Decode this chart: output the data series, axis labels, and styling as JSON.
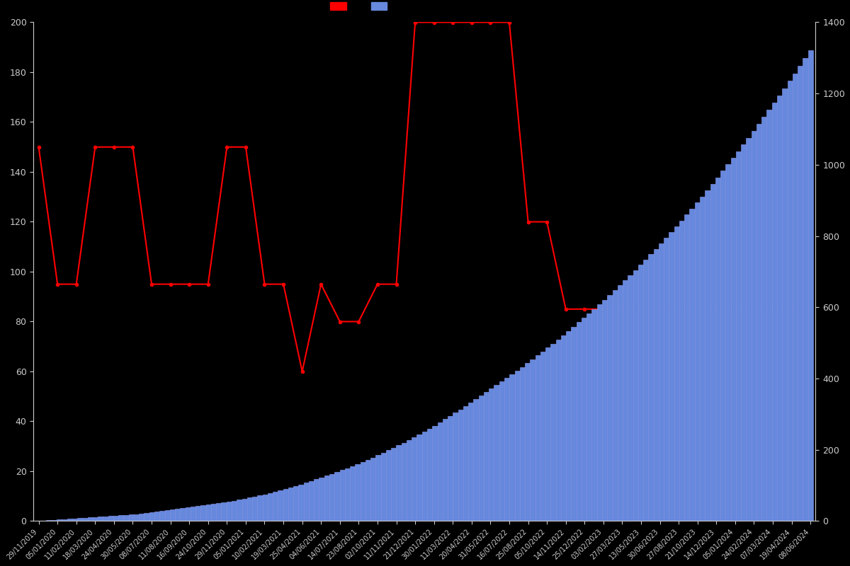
{
  "background_color": "#000000",
  "text_color": "#cccccc",
  "price_color": "#ff0000",
  "bar_color": "#6688dd",
  "bar_edge_color": "#8899ee",
  "ylim_left": [
    0,
    200
  ],
  "ylim_right": [
    0,
    1400
  ],
  "yticks_left": [
    0,
    20,
    40,
    60,
    80,
    100,
    120,
    140,
    160,
    180,
    200
  ],
  "yticks_right": [
    0,
    200,
    400,
    600,
    800,
    1000,
    1200,
    1400
  ],
  "x_tick_labels": [
    "29/11/2019",
    "05/01/2020",
    "11/02/2020",
    "18/03/2020",
    "24/04/2020",
    "30/05/2020",
    "08/07/2020",
    "11/08/2020",
    "16/09/2020",
    "24/10/2020",
    "29/11/2020",
    "05/01/2021",
    "10/02/2021",
    "19/03/2021",
    "25/04/2021",
    "04/06/2021",
    "14/07/2021",
    "23/08/2021",
    "02/10/2021",
    "11/11/2021",
    "21/12/2021",
    "30/01/2022",
    "11/03/2022",
    "20/04/2022",
    "31/05/2022",
    "16/07/2022",
    "25/08/2022",
    "05/10/2022",
    "14/11/2022",
    "25/12/2022",
    "03/02/2023",
    "27/03/2023",
    "13/05/2023",
    "30/06/2023",
    "27/08/2023",
    "21/10/2023",
    "14/12/2023",
    "05/01/2024",
    "24/02/2024",
    "07/03/2024",
    "19/04/2024",
    "08/06/2024"
  ],
  "price_points": {
    "indices": [
      0,
      1,
      2,
      3,
      4,
      5,
      6,
      7,
      8,
      9,
      10,
      11,
      12,
      13,
      14,
      15,
      16,
      17,
      18,
      19,
      20,
      21,
      22,
      23,
      24,
      25,
      26,
      27,
      28,
      29,
      30,
      31,
      32,
      33,
      34,
      35,
      36,
      37,
      38,
      39,
      40,
      41
    ],
    "values": [
      149.99,
      94.99,
      94.99,
      149.99,
      149.99,
      149.99,
      94.99,
      94.99,
      94.99,
      94.99,
      149.99,
      149.99,
      94.99,
      94.99,
      60.0,
      94.99,
      79.99,
      79.99,
      94.99,
      94.99,
      199.99,
      199.99,
      199.99,
      199.99,
      199.99,
      199.99,
      119.99,
      119.99,
      84.99,
      84.99,
      84.99,
      84.99,
      84.99,
      84.99,
      84.99,
      84.99,
      84.99,
      84.99,
      84.99,
      84.99,
      84.99,
      84.99
    ]
  },
  "student_counts": [
    0,
    1,
    2,
    3,
    4,
    5,
    6,
    7,
    8,
    9,
    10,
    11,
    12,
    13,
    14,
    15,
    16,
    17,
    18,
    19,
    20,
    22,
    24,
    26,
    28,
    30,
    32,
    34,
    36,
    38,
    40,
    42,
    44,
    46,
    48,
    50,
    52,
    54,
    57,
    60,
    63,
    66,
    69,
    72,
    75,
    78,
    82,
    86,
    90,
    94,
    98,
    103,
    108,
    113,
    118,
    123,
    128,
    133,
    138,
    143,
    148,
    154,
    160,
    166,
    172,
    178,
    185,
    192,
    199,
    206,
    213,
    220,
    228,
    236,
    244,
    252,
    260,
    268,
    277,
    286,
    295,
    304,
    313,
    322,
    332,
    342,
    352,
    362,
    372,
    382,
    392,
    402,
    412,
    422,
    432,
    443,
    454,
    465,
    476,
    487,
    498,
    510,
    522,
    534,
    546,
    558,
    570,
    582,
    595,
    608,
    621,
    634,
    648,
    662,
    676,
    690,
    704,
    719,
    734,
    749,
    764,
    779,
    795,
    811,
    827,
    843,
    860,
    877,
    894,
    911,
    929,
    947,
    965,
    983,
    1001,
    1019,
    1038,
    1057,
    1076,
    1095,
    1115,
    1135,
    1155,
    1175,
    1195,
    1215,
    1236,
    1257,
    1278,
    1299,
    1321
  ]
}
